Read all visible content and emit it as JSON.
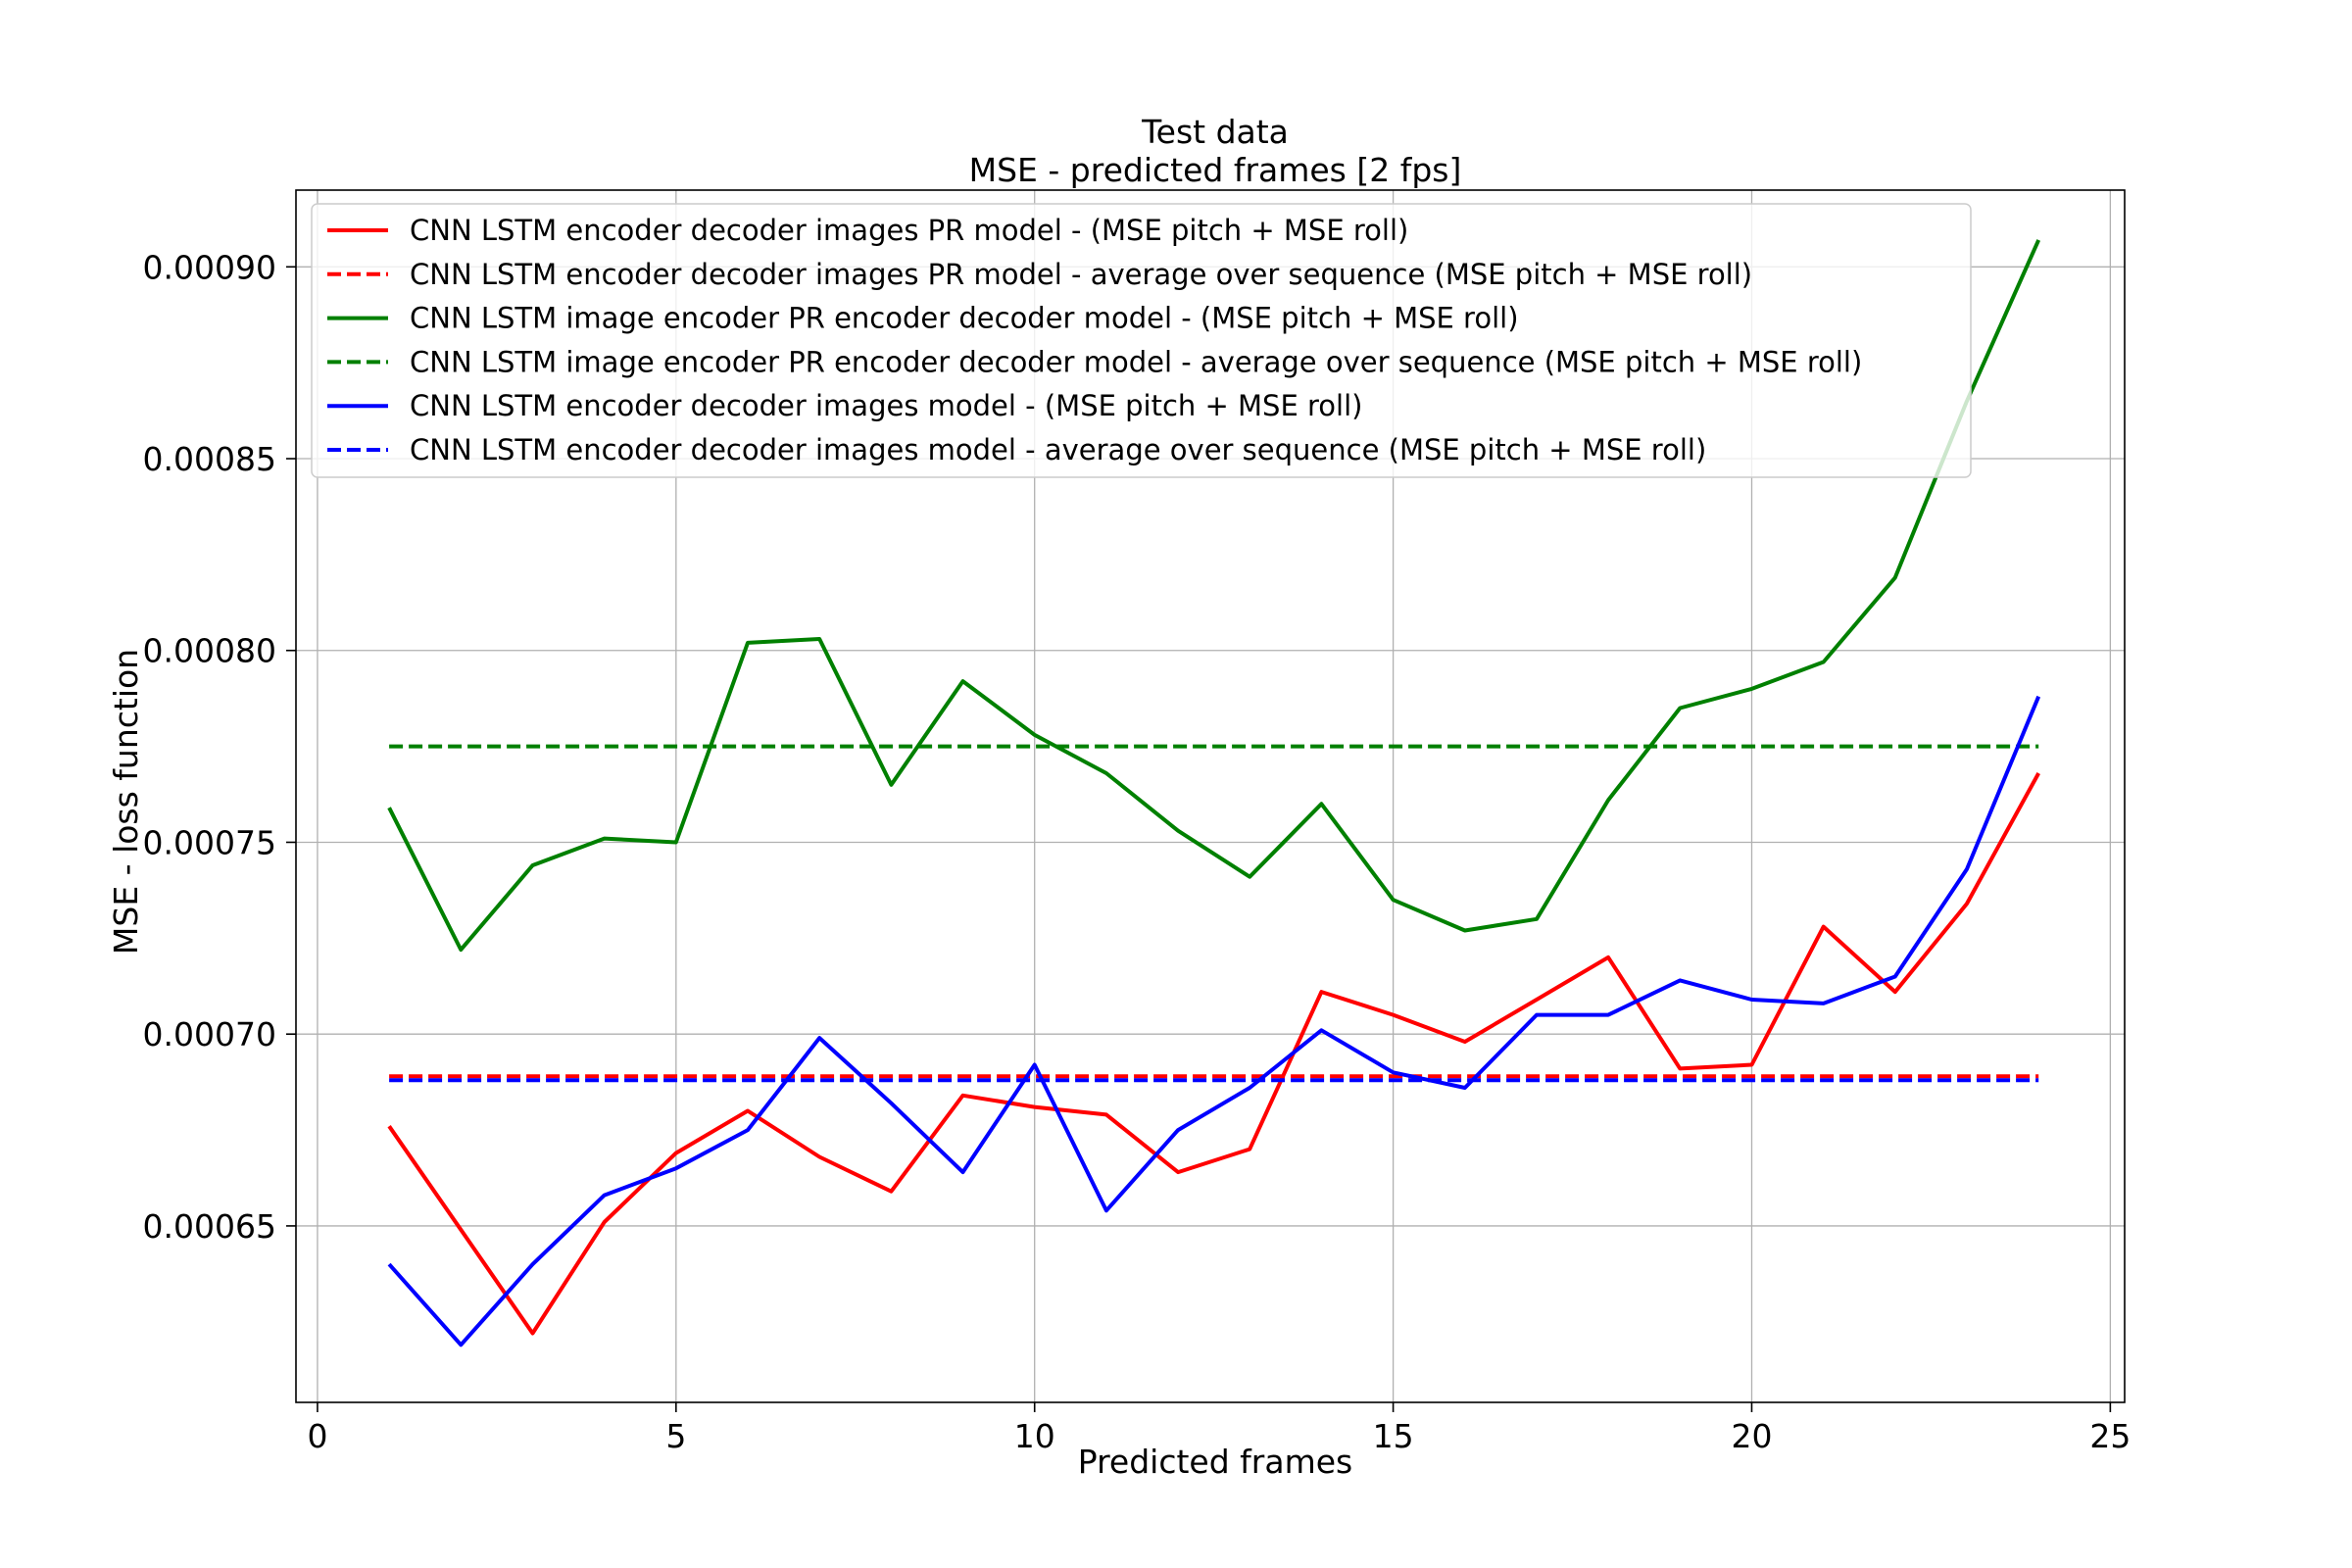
{
  "chart_data": {
    "type": "line",
    "title": "Test data",
    "subtitle": "MSE - predicted frames [2 fps]",
    "xlabel": "Predicted frames",
    "ylabel": "MSE - loss function",
    "xlim": [
      -0.3,
      25.2
    ],
    "ylim": [
      0.000604,
      0.00092
    ],
    "xticks": [
      0,
      5,
      10,
      15,
      20,
      25
    ],
    "xtick_labels": [
      "0",
      "5",
      "10",
      "15",
      "20",
      "25"
    ],
    "yticks": [
      0.00065,
      0.0007,
      0.00075,
      0.0008,
      0.00085,
      0.0009
    ],
    "ytick_labels": [
      "0.00065",
      "0.00070",
      "0.00075",
      "0.00080",
      "0.00085",
      "0.00090"
    ],
    "grid": true,
    "legend_position": "top-left",
    "x": [
      1,
      2,
      3,
      4,
      5,
      6,
      7,
      8,
      9,
      10,
      11,
      12,
      13,
      14,
      15,
      16,
      17,
      18,
      19,
      20,
      21,
      22,
      23,
      24
    ],
    "series": [
      {
        "name": "CNN LSTM encoder decoder images PR model - (MSE pitch + MSE roll)",
        "color": "#ff0000",
        "style": "solid",
        "values": [
          0.000676,
          0.000649,
          0.000622,
          0.000651,
          0.000669,
          0.00068,
          0.000668,
          0.000659,
          0.000684,
          0.000681,
          0.000679,
          0.000664,
          0.00067,
          0.000711,
          0.000705,
          0.000698,
          0.000709,
          0.00072,
          0.000691,
          0.000692,
          0.000728,
          0.000711,
          0.000734,
          0.000768
        ]
      },
      {
        "name": "CNN LSTM encoder decoder images PR model - average over sequence (MSE pitch + MSE roll)",
        "color": "#ff0000",
        "style": "dashed",
        "values": [
          0.000689,
          0.000689,
          0.000689,
          0.000689,
          0.000689,
          0.000689,
          0.000689,
          0.000689,
          0.000689,
          0.000689,
          0.000689,
          0.000689,
          0.000689,
          0.000689,
          0.000689,
          0.000689,
          0.000689,
          0.000689,
          0.000689,
          0.000689,
          0.000689,
          0.000689,
          0.000689,
          0.000689
        ]
      },
      {
        "name": "CNN LSTM image encoder PR encoder decoder model - (MSE pitch + MSE roll)",
        "color": "#008000",
        "style": "solid",
        "values": [
          0.000759,
          0.000722,
          0.000744,
          0.000751,
          0.00075,
          0.000802,
          0.000803,
          0.000765,
          0.000792,
          0.000778,
          0.000768,
          0.000753,
          0.000741,
          0.00076,
          0.000735,
          0.000727,
          0.00073,
          0.000761,
          0.000785,
          0.00079,
          0.000797,
          0.000819,
          0.000865,
          0.000907
        ]
      },
      {
        "name": "CNN LSTM image encoder PR encoder decoder model - average over sequence (MSE pitch + MSE roll)",
        "color": "#008000",
        "style": "dashed",
        "values": [
          0.000775,
          0.000775,
          0.000775,
          0.000775,
          0.000775,
          0.000775,
          0.000775,
          0.000775,
          0.000775,
          0.000775,
          0.000775,
          0.000775,
          0.000775,
          0.000775,
          0.000775,
          0.000775,
          0.000775,
          0.000775,
          0.000775,
          0.000775,
          0.000775,
          0.000775,
          0.000775,
          0.000775
        ]
      },
      {
        "name": "CNN LSTM encoder decoder images model - (MSE pitch + MSE roll)",
        "color": "#0000ff",
        "style": "solid",
        "values": [
          0.00064,
          0.000619,
          0.00064,
          0.000658,
          0.000665,
          0.000675,
          0.000699,
          0.000682,
          0.000664,
          0.000692,
          0.000654,
          0.000675,
          0.000686,
          0.000701,
          0.00069,
          0.000686,
          0.000705,
          0.000705,
          0.000714,
          0.000709,
          0.000708,
          0.000715,
          0.000743,
          0.000788
        ]
      },
      {
        "name": "CNN LSTM encoder decoder images model - average over sequence (MSE pitch + MSE roll)",
        "color": "#0000ff",
        "style": "dashed",
        "values": [
          0.000688,
          0.000688,
          0.000688,
          0.000688,
          0.000688,
          0.000688,
          0.000688,
          0.000688,
          0.000688,
          0.000688,
          0.000688,
          0.000688,
          0.000688,
          0.000688,
          0.000688,
          0.000688,
          0.000688,
          0.000688,
          0.000688,
          0.000688,
          0.000688,
          0.000688,
          0.000688,
          0.000688
        ]
      }
    ]
  }
}
